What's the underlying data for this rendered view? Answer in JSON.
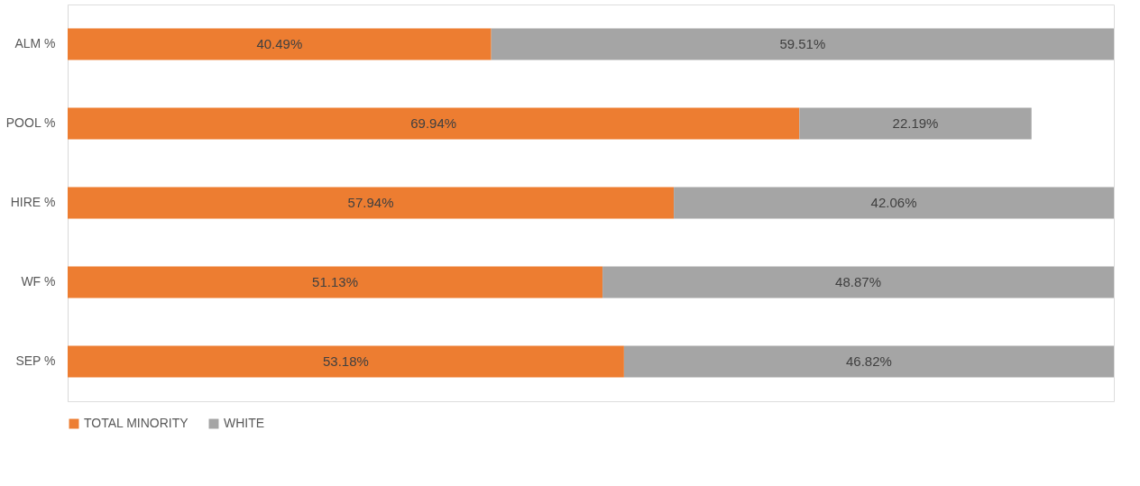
{
  "chart_data": {
    "type": "bar",
    "orientation": "horizontal",
    "stacked": true,
    "categories": [
      "ALM %",
      "POOL %",
      "HIRE %",
      "WF %",
      "SEP %"
    ],
    "series": [
      {
        "name": "TOTAL MINORITY",
        "color": "#ed7d31",
        "values": [
          40.49,
          69.94,
          57.94,
          51.13,
          53.18
        ],
        "value_labels": [
          "40.49%",
          "69.94%",
          "57.94%",
          "51.13%",
          "53.18%"
        ]
      },
      {
        "name": "WHITE",
        "color": "#a5a5a5",
        "values": [
          59.51,
          22.19,
          42.06,
          48.87,
          46.82
        ],
        "value_labels": [
          "59.51%",
          "22.19%",
          "42.06%",
          "48.87%",
          "46.82%"
        ]
      }
    ],
    "tick_labels": "y",
    "grid": false,
    "legend": "bottom"
  }
}
